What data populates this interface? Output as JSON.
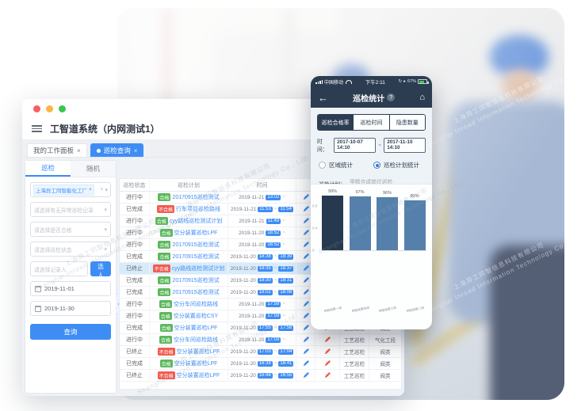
{
  "watermark": {
    "line1": "上海异工同智信息科技有限公司",
    "line2": "Shanghai Inroad Information Technology Co., Ltd."
  },
  "desktop": {
    "app_title": "工智道系统（内网测试1）",
    "workspace_tabs": [
      {
        "label": "我的工作面板",
        "close_icon": "×",
        "active": false
      },
      {
        "label": "巡检查询",
        "close_icon": "×",
        "active": true
      }
    ],
    "sidebar": {
      "tabs": [
        {
          "label": "巡检",
          "active": true
        },
        {
          "label": "随机",
          "active": false
        }
      ],
      "org_chip": {
        "label": "上海异工同智能化工厂",
        "clear_icon": "×",
        "caret_icon": "▾"
      },
      "selects": [
        {
          "placeholder": "请选择有无异常巡检记录",
          "caret_icon": "▾"
        },
        {
          "placeholder": "请选择是否合格",
          "caret_icon": "▾"
        },
        {
          "placeholder": "请选择巡检状态",
          "caret_icon": "▾"
        }
      ],
      "recorder": {
        "placeholder": "请选择记录人",
        "button_label": "选人"
      },
      "date_start": "2019-11-01",
      "date_end": "2019-11-30",
      "query_button": "查询",
      "collapse_icon": "‹"
    },
    "table": {
      "headers": [
        "巡检状态",
        "巡检计划",
        "时间",
        "",
        "",
        "",
        ""
      ],
      "time_separator": "~",
      "rows": [
        {
          "status": "进行中",
          "result": "合格",
          "plan": "20170915巡检测试",
          "date": "2019-11-21",
          "start": "13:02",
          "end": null,
          "type": null,
          "area": null,
          "highlight": false
        },
        {
          "status": "已完成",
          "result": "不合格",
          "plan": "行车项目巡检路线",
          "date": "2019-11-21",
          "start": "11:53",
          "end": "11:54",
          "type": null,
          "area": null,
          "highlight": false
        },
        {
          "status": "进行中",
          "result": "合格",
          "plan": "cyy路线巡检测试计划",
          "date": "2019-11-21",
          "start": "11:49",
          "end": null,
          "type": null,
          "area": null,
          "highlight": false
        },
        {
          "status": "进行中",
          "result": "合格",
          "plan": "空分装置巡检LPF",
          "date": "2019-11-20",
          "start": "18:52",
          "end": null,
          "type": null,
          "area": null,
          "highlight": false
        },
        {
          "status": "进行中",
          "result": "合格",
          "plan": "20170915巡检测试",
          "date": "2019-11-20",
          "start": "18:52",
          "end": null,
          "type": null,
          "area": null,
          "highlight": false
        },
        {
          "status": "已完成",
          "result": "合格",
          "plan": "20170915巡检测试",
          "date": "2019-11-20",
          "start": "18:38",
          "end": "18:39",
          "type": null,
          "area": null,
          "highlight": false
        },
        {
          "status": "已终止",
          "result": "不合格",
          "plan": "cyy路线巡检测试计划",
          "date": "2019-11-20",
          "start": "18:35",
          "end": "18:37",
          "type": null,
          "area": null,
          "highlight": true
        },
        {
          "status": "已完成",
          "result": "合格",
          "plan": "20170915巡检测试",
          "date": "2019-11-20",
          "start": "18:30",
          "end": "18:31",
          "type": null,
          "area": null,
          "highlight": false
        },
        {
          "status": "已完成",
          "result": "合格",
          "plan": "20170915巡检测试",
          "date": "2019-11-20",
          "start": "18:02",
          "end": "18:06",
          "type": null,
          "area": null,
          "highlight": false
        },
        {
          "status": "进行中",
          "result": "合格",
          "plan": "空分车间巡检路线",
          "date": "2019-11-20",
          "start": "17:59",
          "end": null,
          "type": null,
          "area": null,
          "highlight": false
        },
        {
          "status": "进行中",
          "result": "合格",
          "plan": "空分装置巡检CSY",
          "date": "2019-11-20",
          "start": "17:59",
          "end": null,
          "type": null,
          "area": null,
          "highlight": false
        },
        {
          "status": "已完成",
          "result": "合格",
          "plan": "空分装置巡检LPF",
          "date": "2019-11-20",
          "start": "17:55",
          "end": "17:56",
          "type": "工艺巡检",
          "area": "阀类",
          "highlight": false
        },
        {
          "status": "进行中",
          "result": "合格",
          "plan": "空分车间巡检路线",
          "date": "2019-11-20",
          "start": "17:03",
          "end": null,
          "type": "工艺巡检",
          "area": "气化工段",
          "highlight": false
        },
        {
          "status": "已终止",
          "result": "不合格",
          "plan": "空分装置巡检LPF",
          "date": "2019-11-20",
          "start": "17:03",
          "end": "17:04",
          "type": "工艺巡检",
          "area": "阀类",
          "highlight": false
        },
        {
          "status": "已完成",
          "result": "合格",
          "plan": "空分装置巡检LPF",
          "date": "2019-11-20",
          "start": "16:38",
          "end": "16:41",
          "type": "工艺巡检",
          "area": "阀类",
          "highlight": false
        },
        {
          "status": "已终止",
          "result": "不合格",
          "plan": "空分装置巡检LPF",
          "date": "2019-11-20",
          "start": "16:48",
          "end": "16:55",
          "type": "工艺巡检",
          "area": "阀类",
          "highlight": false
        }
      ]
    }
  },
  "phone": {
    "status_bar": {
      "carrier": "中国移动",
      "time": "下午2:11",
      "battery_percent": "67%"
    },
    "nav": {
      "back_icon": "←",
      "title": "巡检统计",
      "help_icon": "?",
      "home_icon": "⌂"
    },
    "segments": [
      {
        "label": "巡检合格率",
        "active": true
      },
      {
        "label": "巡检时间",
        "active": false
      },
      {
        "label": "隐患数量",
        "active": false
      }
    ],
    "time_filter": {
      "label": "时间：",
      "from": "2017-10-07 14:10",
      "separator": "~",
      "to": "2017-11-10 14:10"
    },
    "radios": [
      {
        "label": "区域统计",
        "selected": false
      },
      {
        "label": "巡检计划统计",
        "selected": true
      }
    ],
    "plan_filter": {
      "label": "巡检计划：",
      "value": "甲醇合成岗位巡检"
    }
  },
  "chart_data": {
    "type": "bar",
    "title": "",
    "xlabel": "",
    "ylabel": "",
    "categories": [
      "甲醇装置一线",
      "甲醇装置四线",
      "甲醇装置三线",
      "甲醇装置二线"
    ],
    "values": [
      0.99,
      0.97,
      0.96,
      0.9
    ],
    "data_labels": [
      "99%",
      "97%",
      "96%",
      "90%"
    ],
    "ylim": [
      0,
      1
    ],
    "yticks": [
      0,
      0.4,
      0.8
    ],
    "grid": false,
    "legend": "none",
    "bar_colors": [
      "#27394f",
      "#5580ab",
      "#5580ab",
      "#5580ab"
    ]
  },
  "colors": {
    "accent_blue": "#3e8df5",
    "pass_green": "#5cb85c",
    "fail_red": "#f25b50",
    "phone_dark": "#2c3d52",
    "bar_primary": "#27394f",
    "bar_secondary": "#5580ab",
    "highlight_row": "#d7ebfb"
  }
}
